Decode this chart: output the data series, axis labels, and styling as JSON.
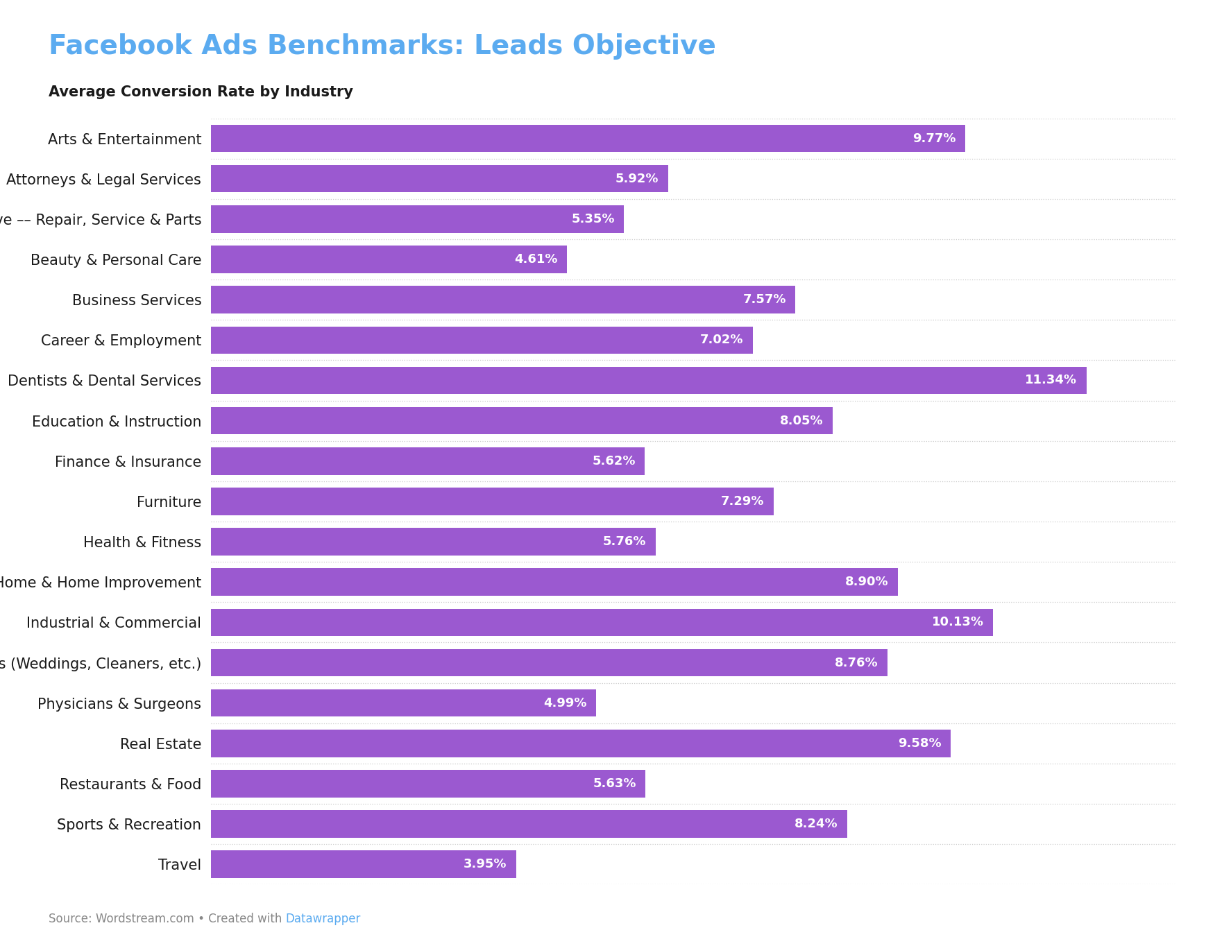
{
  "title": "Facebook Ads Benchmarks: Leads Objective",
  "subtitle": "Average Conversion Rate by Industry",
  "title_color": "#5babf0",
  "subtitle_color": "#1a1a1a",
  "bar_color": "#9b59d0",
  "source_text": "Source: Wordstream.com • Created with ",
  "source_link_text": "Datawrapper",
  "source_link_color": "#5babf0",
  "source_color": "#888888",
  "background_color": "#ffffff",
  "categories": [
    "Arts & Entertainment",
    "Attorneys & Legal Services",
    "Automotive –– Repair, Service & Parts",
    "Beauty & Personal Care",
    "Business Services",
    "Career & Employment",
    "Dentists & Dental Services",
    "Education & Instruction",
    "Finance & Insurance",
    "Furniture",
    "Health & Fitness",
    "Home & Home Improvement",
    "Industrial & Commercial",
    "Personal Services (Weddings, Cleaners, etc.)",
    "Physicians & Surgeons",
    "Real Estate",
    "Restaurants & Food",
    "Sports & Recreation",
    "Travel"
  ],
  "values": [
    9.77,
    5.92,
    5.35,
    4.61,
    7.57,
    7.02,
    11.34,
    8.05,
    5.62,
    7.29,
    5.76,
    8.9,
    10.13,
    8.76,
    4.99,
    9.58,
    5.63,
    8.24,
    3.95
  ],
  "xlim": [
    0,
    12.5
  ],
  "label_fontsize": 15,
  "value_fontsize": 13,
  "title_fontsize": 28,
  "subtitle_fontsize": 15,
  "source_fontsize": 12,
  "bar_height": 0.68,
  "label_color": "#1a1a1a",
  "value_color": "#ffffff",
  "separator_color": "#cccccc"
}
